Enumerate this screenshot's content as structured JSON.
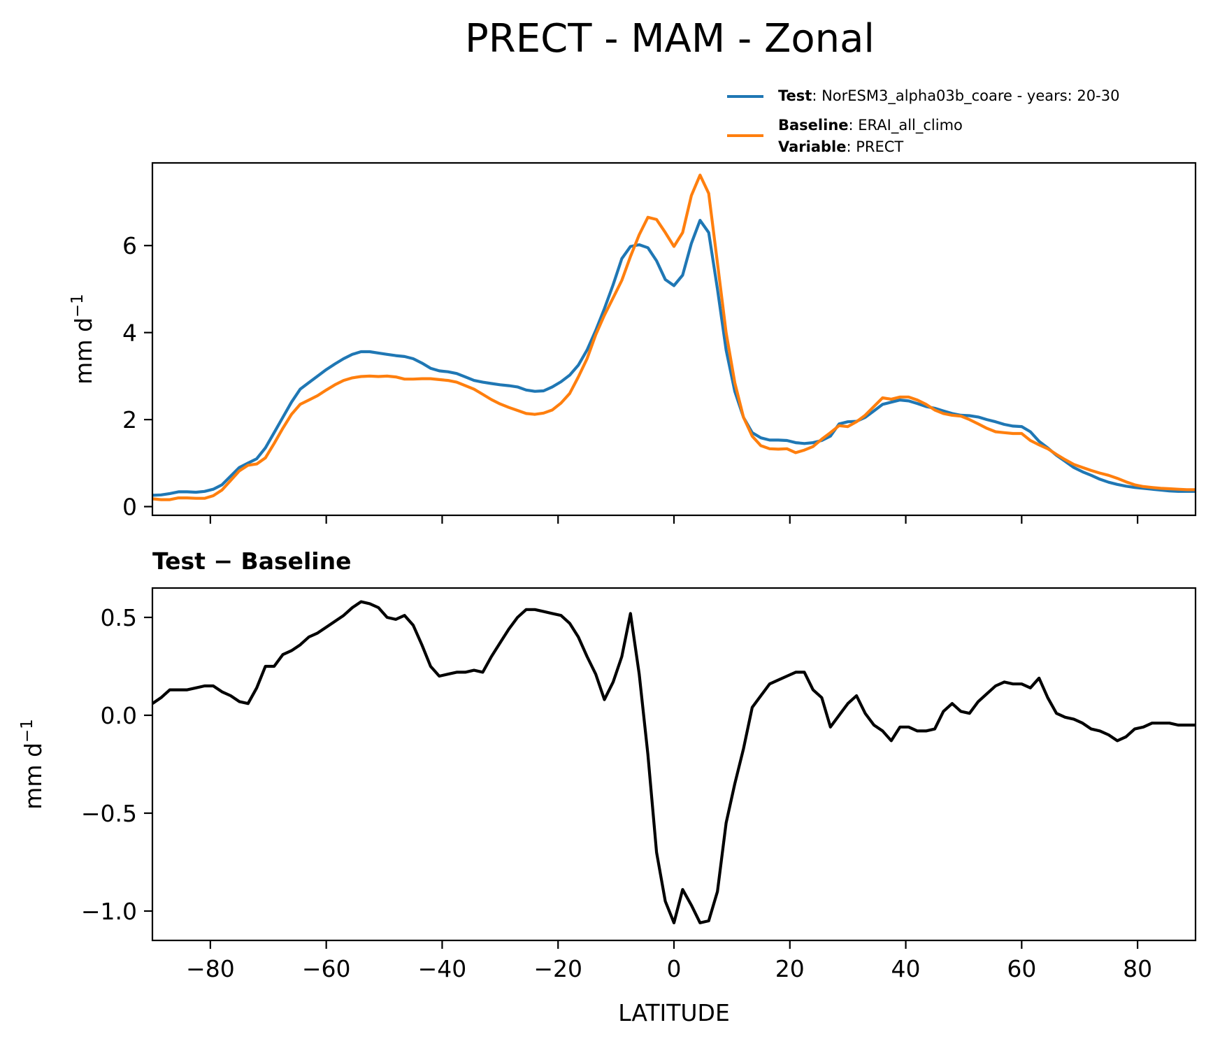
{
  "title": "PRECT - MAM - Zonal",
  "legend": [
    {
      "key": "Test",
      "text": ": NorESM3_alpha03b_coare - years: 20-30",
      "color": "#1f77b4"
    },
    {
      "key": "Baseline",
      "text": ": ERAI_all_climo",
      "color": "#ff7f0e"
    },
    {
      "key": "Variable",
      "text": ": PRECT",
      "color": "#000000"
    }
  ],
  "chart_data": [
    {
      "type": "line",
      "panel": "top",
      "title": "",
      "xlabel": "",
      "ylabel": "mm d",
      "ylabel_exponent": "−1",
      "xlim": [
        -90,
        90
      ],
      "ylim": [
        -0.2,
        7.9
      ],
      "xticks": [
        -80,
        -60,
        -40,
        -20,
        0,
        20,
        40,
        60,
        80
      ],
      "yticks": [
        0,
        2,
        4,
        6
      ],
      "ytick_labels": [
        "0",
        "2",
        "4",
        "6"
      ],
      "series": [
        {
          "name": "Test",
          "color": "#1f77b4",
          "x": [
            -90,
            -88.5,
            -87,
            -85.5,
            -84,
            -82.5,
            -81,
            -79.5,
            -78,
            -76.5,
            -75,
            -73.5,
            -72,
            -70.5,
            -69,
            -67.5,
            -66,
            -64.5,
            -63,
            -61.5,
            -60,
            -58.5,
            -57,
            -55.5,
            -54,
            -52.5,
            -51,
            -49.5,
            -48,
            -46.5,
            -45,
            -43.5,
            -42,
            -40.5,
            -39,
            -37.5,
            -36,
            -34.5,
            -33,
            -31.5,
            -30,
            -28.5,
            -27,
            -25.5,
            -24,
            -22.5,
            -21,
            -19.5,
            -18,
            -16.5,
            -15,
            -13.5,
            -12,
            -10.5,
            -9,
            -7.5,
            -6,
            -4.5,
            -3,
            -1.5,
            0,
            1.5,
            3,
            4.5,
            6,
            7.5,
            9,
            10.5,
            12,
            13.5,
            15,
            16.5,
            18,
            19.5,
            21,
            22.5,
            24,
            25.5,
            27,
            28.5,
            30,
            31.5,
            33,
            34.5,
            36,
            37.5,
            39,
            40.5,
            42,
            43.5,
            45,
            46.5,
            48,
            49.5,
            51,
            52.5,
            54,
            55.5,
            57,
            58.5,
            60,
            61.5,
            63,
            64.5,
            66,
            67.5,
            69,
            70.5,
            72,
            73.5,
            75,
            76.5,
            78,
            79.5,
            81,
            82.5,
            84,
            85.5,
            87,
            88.5,
            90
          ],
          "values": [
            0.26,
            0.27,
            0.3,
            0.34,
            0.34,
            0.33,
            0.35,
            0.4,
            0.5,
            0.7,
            0.9,
            1.0,
            1.1,
            1.35,
            1.7,
            2.05,
            2.4,
            2.7,
            2.85,
            3.0,
            3.15,
            3.28,
            3.4,
            3.5,
            3.56,
            3.56,
            3.53,
            3.5,
            3.47,
            3.45,
            3.4,
            3.3,
            3.18,
            3.12,
            3.1,
            3.06,
            2.98,
            2.9,
            2.86,
            2.83,
            2.8,
            2.78,
            2.75,
            2.68,
            2.65,
            2.66,
            2.75,
            2.87,
            3.02,
            3.25,
            3.6,
            4.05,
            4.55,
            5.1,
            5.7,
            5.98,
            6.02,
            5.95,
            5.65,
            5.22,
            5.08,
            5.32,
            6.05,
            6.58,
            6.3,
            5.0,
            3.6,
            2.65,
            2.05,
            1.7,
            1.58,
            1.53,
            1.53,
            1.52,
            1.47,
            1.45,
            1.47,
            1.52,
            1.62,
            1.9,
            1.95,
            1.96,
            2.05,
            2.2,
            2.35,
            2.4,
            2.45,
            2.43,
            2.37,
            2.3,
            2.26,
            2.2,
            2.14,
            2.1,
            2.09,
            2.06,
            2.0,
            1.95,
            1.89,
            1.85,
            1.84,
            1.72,
            1.5,
            1.35,
            1.18,
            1.04,
            0.9,
            0.8,
            0.72,
            0.63,
            0.56,
            0.51,
            0.47,
            0.44,
            0.42,
            0.4,
            0.38,
            0.36,
            0.35,
            0.35,
            0.35
          ]
        },
        {
          "name": "Baseline",
          "color": "#ff7f0e",
          "x": [
            -90,
            -88.5,
            -87,
            -85.5,
            -84,
            -82.5,
            -81,
            -79.5,
            -78,
            -76.5,
            -75,
            -73.5,
            -72,
            -70.5,
            -69,
            -67.5,
            -66,
            -64.5,
            -63,
            -61.5,
            -60,
            -58.5,
            -57,
            -55.5,
            -54,
            -52.5,
            -51,
            -49.5,
            -48,
            -46.5,
            -45,
            -43.5,
            -42,
            -40.5,
            -39,
            -37.5,
            -36,
            -34.5,
            -33,
            -31.5,
            -30,
            -28.5,
            -27,
            -25.5,
            -24,
            -22.5,
            -21,
            -19.5,
            -18,
            -16.5,
            -15,
            -13.5,
            -12,
            -10.5,
            -9,
            -7.5,
            -6,
            -4.5,
            -3,
            -1.5,
            0,
            1.5,
            3,
            4.5,
            6,
            7.5,
            9,
            10.5,
            12,
            13.5,
            15,
            16.5,
            18,
            19.5,
            21,
            22.5,
            24,
            25.5,
            27,
            28.5,
            30,
            31.5,
            33,
            34.5,
            36,
            37.5,
            39,
            40.5,
            42,
            43.5,
            45,
            46.5,
            48,
            49.5,
            51,
            52.5,
            54,
            55.5,
            57,
            58.5,
            60,
            61.5,
            63,
            64.5,
            66,
            67.5,
            69,
            70.5,
            72,
            73.5,
            75,
            76.5,
            78,
            79.5,
            81,
            82.5,
            84,
            85.5,
            87,
            88.5,
            90
          ],
          "values": [
            0.18,
            0.16,
            0.16,
            0.2,
            0.2,
            0.19,
            0.19,
            0.25,
            0.38,
            0.6,
            0.82,
            0.95,
            0.98,
            1.12,
            1.45,
            1.8,
            2.12,
            2.35,
            2.45,
            2.55,
            2.68,
            2.8,
            2.9,
            2.96,
            2.99,
            3.0,
            2.99,
            3.0,
            2.98,
            2.93,
            2.93,
            2.94,
            2.94,
            2.92,
            2.9,
            2.86,
            2.78,
            2.7,
            2.58,
            2.46,
            2.36,
            2.28,
            2.21,
            2.14,
            2.12,
            2.15,
            2.22,
            2.38,
            2.6,
            2.98,
            3.4,
            3.95,
            4.4,
            4.8,
            5.2,
            5.75,
            6.25,
            6.65,
            6.6,
            6.3,
            5.98,
            6.3,
            7.15,
            7.62,
            7.2,
            5.6,
            4.0,
            2.85,
            2.05,
            1.62,
            1.4,
            1.33,
            1.32,
            1.33,
            1.24,
            1.3,
            1.38,
            1.55,
            1.7,
            1.86,
            1.84,
            1.95,
            2.1,
            2.3,
            2.5,
            2.47,
            2.52,
            2.52,
            2.45,
            2.35,
            2.22,
            2.14,
            2.1,
            2.08,
            2.0,
            1.9,
            1.8,
            1.72,
            1.7,
            1.68,
            1.68,
            1.52,
            1.42,
            1.33,
            1.2,
            1.08,
            0.97,
            0.9,
            0.83,
            0.77,
            0.72,
            0.65,
            0.57,
            0.5,
            0.46,
            0.44,
            0.42,
            0.41,
            0.4,
            0.39,
            0.39
          ]
        }
      ]
    },
    {
      "type": "line",
      "panel": "bottom",
      "title": "Test − Baseline",
      "xlabel": "LATITUDE",
      "ylabel": "mm d",
      "ylabel_exponent": "−1",
      "xlim": [
        -90,
        90
      ],
      "ylim": [
        -1.15,
        0.65
      ],
      "xticks": [
        -80,
        -60,
        -40,
        -20,
        0,
        20,
        40,
        60,
        80
      ],
      "xtick_labels": [
        "−80",
        "−60",
        "−40",
        "−20",
        "0",
        "20",
        "40",
        "60",
        "80"
      ],
      "yticks": [
        0.5,
        0.0,
        -0.5,
        -1.0
      ],
      "ytick_labels": [
        "0.5",
        "0.0",
        "−0.5",
        "−1.0"
      ],
      "series": [
        {
          "name": "Test − Baseline",
          "color": "#000000",
          "x": [
            -90,
            -88.5,
            -87,
            -85.5,
            -84,
            -82.5,
            -81,
            -79.5,
            -78,
            -76.5,
            -75,
            -73.5,
            -72,
            -70.5,
            -69,
            -67.5,
            -66,
            -64.5,
            -63,
            -61.5,
            -60,
            -58.5,
            -57,
            -55.5,
            -54,
            -52.5,
            -51,
            -49.5,
            -48,
            -46.5,
            -45,
            -43.5,
            -42,
            -40.5,
            -39,
            -37.5,
            -36,
            -34.5,
            -33,
            -31.5,
            -30,
            -28.5,
            -27,
            -25.5,
            -24,
            -22.5,
            -21,
            -19.5,
            -18,
            -16.5,
            -15,
            -13.5,
            -12,
            -10.5,
            -9,
            -7.5,
            -6,
            -4.5,
            -3,
            -1.5,
            0,
            1.5,
            3,
            4.5,
            6,
            7.5,
            9,
            10.5,
            12,
            13.5,
            15,
            16.5,
            18,
            19.5,
            21,
            22.5,
            24,
            25.5,
            27,
            28.5,
            30,
            31.5,
            33,
            34.5,
            36,
            37.5,
            39,
            40.5,
            42,
            43.5,
            45,
            46.5,
            48,
            49.5,
            51,
            52.5,
            54,
            55.5,
            57,
            58.5,
            60,
            61.5,
            63,
            64.5,
            66,
            67.5,
            69,
            70.5,
            72,
            73.5,
            75,
            76.5,
            78,
            79.5,
            81,
            82.5,
            84,
            85.5,
            87,
            88.5,
            90
          ],
          "values": [
            0.06,
            0.09,
            0.13,
            0.13,
            0.13,
            0.14,
            0.15,
            0.15,
            0.12,
            0.1,
            0.07,
            0.06,
            0.14,
            0.25,
            0.25,
            0.31,
            0.33,
            0.36,
            0.4,
            0.42,
            0.45,
            0.48,
            0.51,
            0.55,
            0.58,
            0.57,
            0.55,
            0.5,
            0.49,
            0.51,
            0.46,
            0.36,
            0.25,
            0.2,
            0.21,
            0.22,
            0.22,
            0.23,
            0.22,
            0.3,
            0.37,
            0.44,
            0.5,
            0.54,
            0.54,
            0.53,
            0.52,
            0.51,
            0.47,
            0.4,
            0.3,
            0.21,
            0.08,
            0.17,
            0.3,
            0.52,
            0.21,
            -0.2,
            -0.7,
            -0.95,
            -1.06,
            -0.89,
            -0.97,
            -1.06,
            -1.05,
            -0.9,
            -0.55,
            -0.35,
            -0.17,
            0.04,
            0.1,
            0.16,
            0.18,
            0.2,
            0.22,
            0.22,
            0.13,
            0.09,
            -0.06,
            0.0,
            0.06,
            0.1,
            0.01,
            -0.05,
            -0.08,
            -0.13,
            -0.06,
            -0.06,
            -0.08,
            -0.08,
            -0.07,
            0.02,
            0.06,
            0.02,
            0.01,
            0.07,
            0.11,
            0.15,
            0.17,
            0.16,
            0.16,
            0.14,
            0.19,
            0.09,
            0.01,
            -0.01,
            -0.02,
            -0.04,
            -0.07,
            -0.08,
            -0.1,
            -0.13,
            -0.11,
            -0.07,
            -0.06,
            -0.04,
            -0.04,
            -0.04,
            -0.05,
            -0.05,
            -0.05
          ]
        }
      ]
    }
  ]
}
